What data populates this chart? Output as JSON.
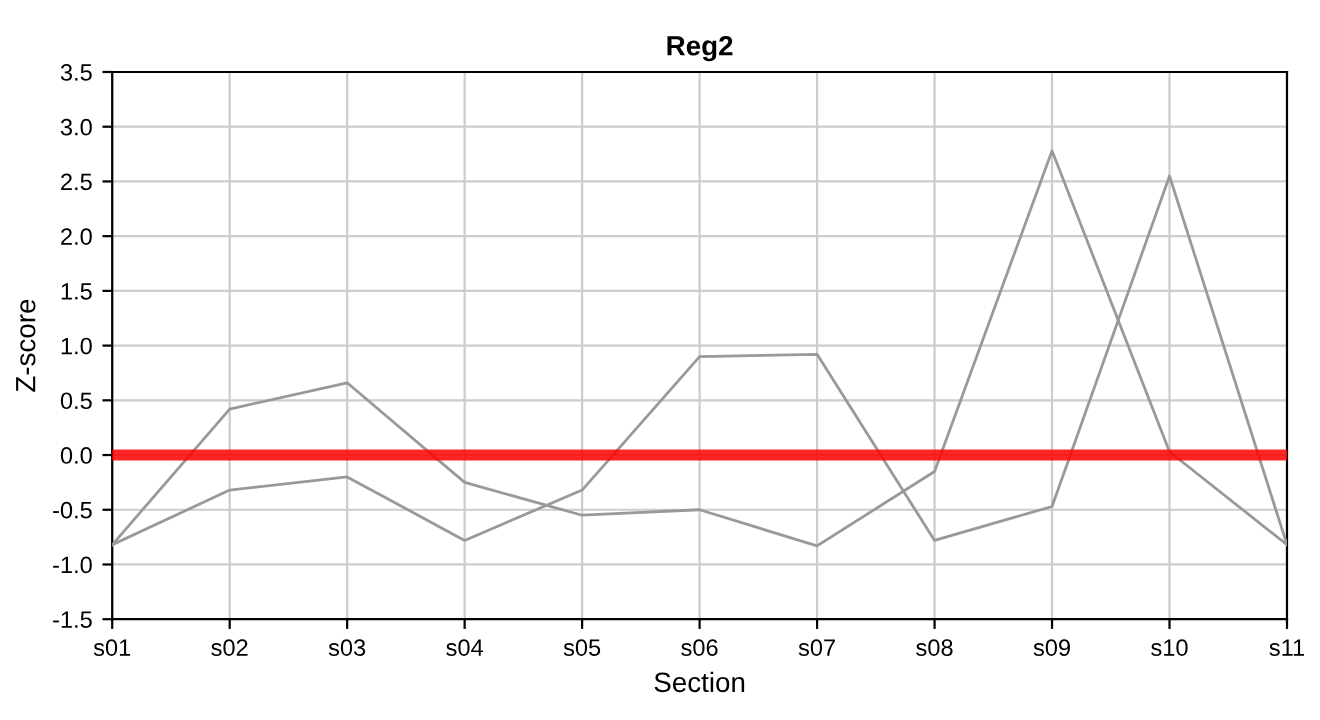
{
  "chart_data": {
    "type": "line",
    "title": "Reg2",
    "xlabel": "Section",
    "ylabel": "Z-score",
    "categories": [
      "s01",
      "s02",
      "s03",
      "s04",
      "s05",
      "s06",
      "s07",
      "s08",
      "s09",
      "s10",
      "s11"
    ],
    "series": [
      {
        "color": "#999999",
        "values": [
          -0.82,
          0.42,
          0.66,
          -0.25,
          -0.55,
          -0.5,
          -0.83,
          -0.15,
          2.78,
          0.03,
          -0.82
        ]
      },
      {
        "color": "#999999",
        "values": [
          -0.82,
          -0.32,
          -0.2,
          -0.78,
          -0.32,
          0.9,
          0.92,
          -0.78,
          -0.47,
          2.55,
          -0.82
        ]
      }
    ],
    "ylim": [
      -1.5,
      3.5
    ],
    "yticks": [
      {
        "value": -1.5,
        "label": "-1.5"
      },
      {
        "value": -1.0,
        "label": "-1.0"
      },
      {
        "value": -0.5,
        "label": "-0.5"
      },
      {
        "value": 0.0,
        "label": "0.0"
      },
      {
        "value": 0.5,
        "label": "0.5"
      },
      {
        "value": 1.0,
        "label": "1.0"
      },
      {
        "value": 1.5,
        "label": "1.5"
      },
      {
        "value": 2.0,
        "label": "2.0"
      },
      {
        "value": 2.5,
        "label": "2.5"
      },
      {
        "value": 3.0,
        "label": "3.0"
      },
      {
        "value": 3.5,
        "label": "3.5"
      }
    ],
    "ref_lines": [
      {
        "axis": "y",
        "value": 0,
        "color": "#ff0000"
      }
    ],
    "grid": true,
    "legend": false,
    "marker": "none",
    "line_style": "solid"
  }
}
